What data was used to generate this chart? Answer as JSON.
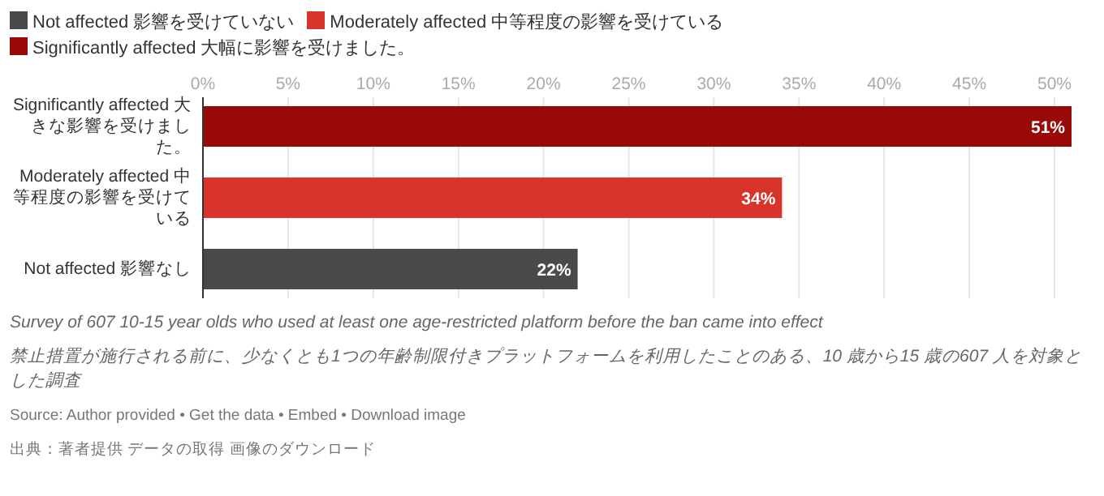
{
  "chart_data": {
    "type": "bar",
    "orientation": "horizontal",
    "categories": [
      "Significantly affected 大きな影響を受けました。",
      "Moderately affected 中等程度の影響を受けている",
      "Not affected 影響なし"
    ],
    "series": [
      {
        "name": "Not affected 影響を受けていない",
        "color": "#4a4a4a",
        "values": [
          null,
          null,
          22
        ],
        "value_labels": [
          null,
          null,
          "22%"
        ]
      },
      {
        "name": "Moderately affected 中等程度の影響を受けている",
        "color": "#d9342b",
        "values": [
          null,
          34,
          null
        ],
        "value_labels": [
          null,
          "34%",
          null
        ]
      },
      {
        "name": "Significantly affected 大幅に影響を受けました。",
        "color": "#990a06",
        "values": [
          51,
          null,
          null
        ],
        "value_labels": [
          "51%",
          null,
          null
        ]
      }
    ],
    "xlim": [
      0,
      51
    ],
    "xticks": [
      {
        "value": 0,
        "label": "0%"
      },
      {
        "value": 5,
        "label": "5%"
      },
      {
        "value": 10,
        "label": "10%"
      },
      {
        "value": 15,
        "label": "15%"
      },
      {
        "value": 20,
        "label": "20%"
      },
      {
        "value": 25,
        "label": "25%"
      },
      {
        "value": 30,
        "label": "30%"
      },
      {
        "value": 35,
        "label": "35%"
      },
      {
        "value": 40,
        "label": "40%"
      },
      {
        "value": 45,
        "label": "45%"
      },
      {
        "value": 50,
        "label": "50%"
      }
    ],
    "grid": "x",
    "legend": "top",
    "annotations": [
      "*Survey of 607 10-15 year olds who used at least one age-restricted platform before the ban came into effect*",
      "*禁止措置が施行される前に、少なくとも1つの年齢制限付きプラットフォームを利用したことのある、10 歳から15 歳の607 人を対象とした調査*",
      "Source: Author provided • Get the data • Embed • Download image",
      "出典：著者提供 データの取得 画像のダウンロード"
    ]
  }
}
